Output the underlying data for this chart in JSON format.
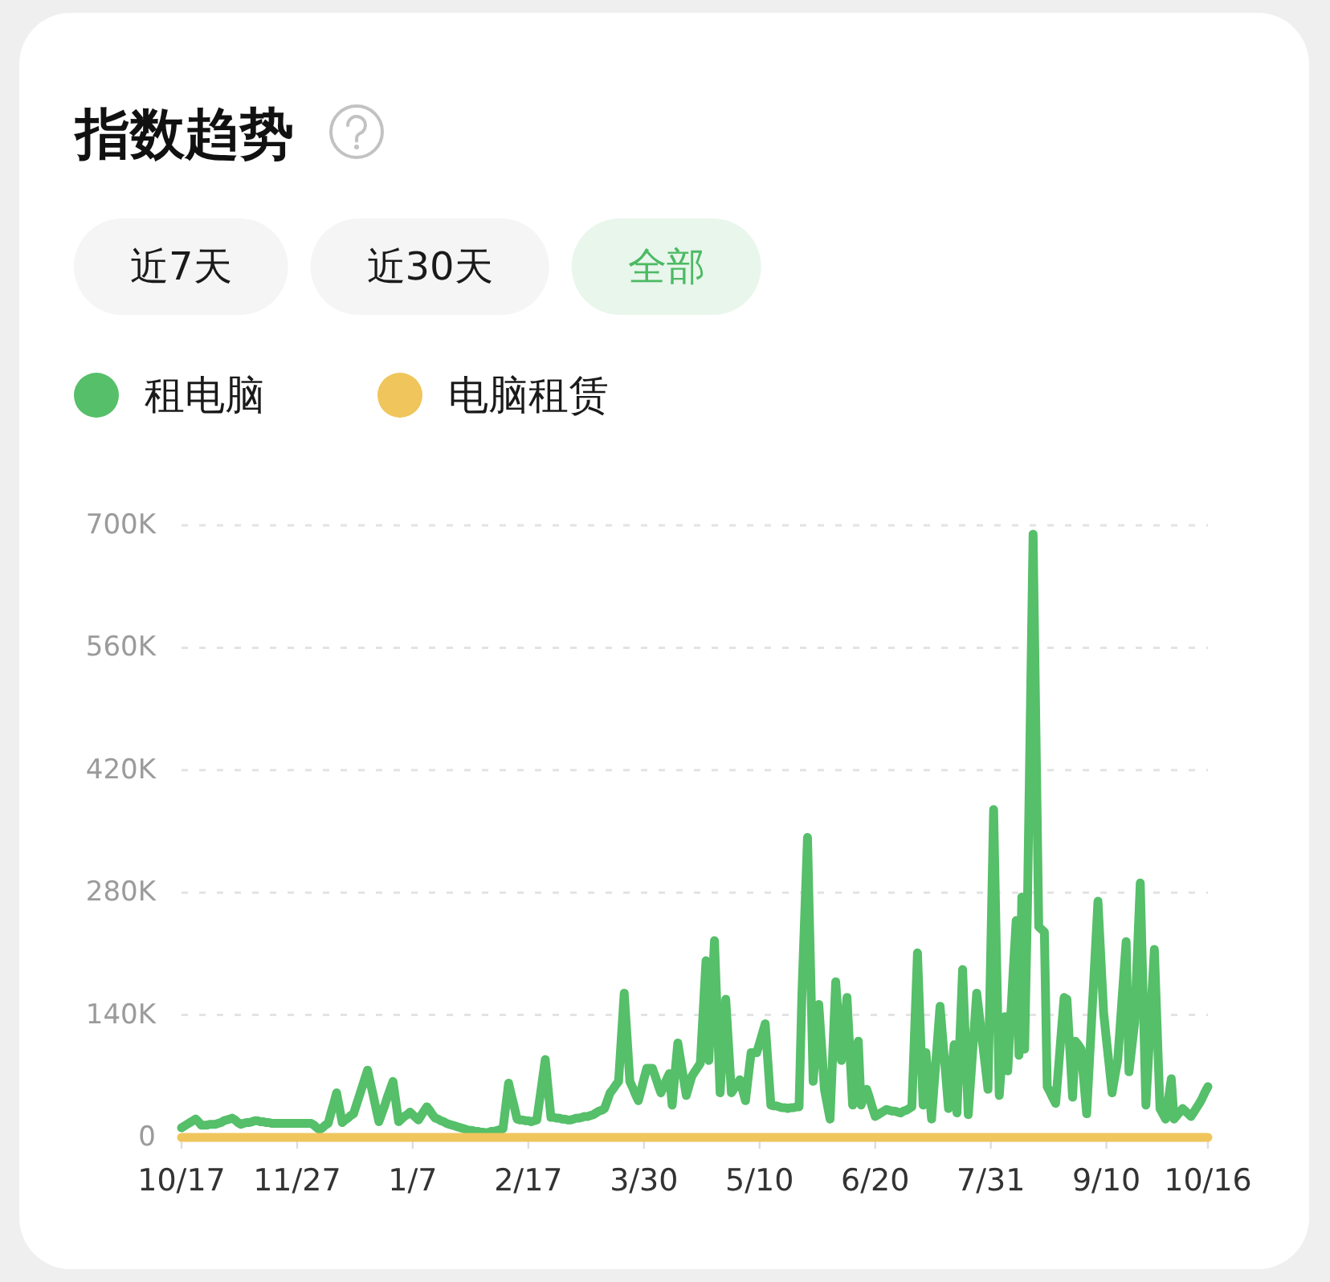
{
  "chart_data": {
    "type": "line",
    "title": "指数趋势",
    "annotations": [
      "近7天",
      "近30天",
      "全部"
    ],
    "legend": "top left",
    "grid": "y",
    "line_style": "solid",
    "categories": [
      "10/17",
      null,
      null,
      null,
      null,
      null,
      null,
      null,
      null,
      null,
      null,
      null,
      null,
      null,
      null,
      null,
      null,
      null,
      null,
      null,
      null,
      null,
      null,
      null,
      null,
      null,
      null,
      null,
      null,
      null,
      null,
      null,
      null,
      null,
      null,
      null,
      null,
      null,
      null,
      null,
      null,
      "11/27",
      null,
      null,
      null,
      null,
      null,
      null,
      null,
      null,
      null,
      null,
      null,
      null,
      null,
      null,
      null,
      null,
      null,
      null,
      null,
      null,
      null,
      null,
      null,
      null,
      null,
      null,
      null,
      null,
      null,
      null,
      null,
      null,
      null,
      null,
      null,
      null,
      null,
      null,
      null,
      null,
      "1/7",
      null,
      null,
      null,
      null,
      null,
      null,
      null,
      null,
      null,
      null,
      null,
      null,
      null,
      null,
      null,
      null,
      null,
      null,
      null,
      null,
      null,
      null,
      null,
      null,
      null,
      null,
      null,
      null,
      null,
      null,
      null,
      null,
      null,
      null,
      null,
      null,
      null,
      null,
      null,
      null,
      "2/17",
      null,
      null,
      null,
      null,
      null,
      null,
      null,
      null,
      null,
      null,
      null,
      null,
      null,
      null,
      null,
      null,
      null,
      null,
      null,
      null,
      null,
      null,
      null,
      null,
      null,
      null,
      null,
      null,
      null,
      null,
      null,
      null,
      null,
      null,
      null,
      null,
      null,
      null,
      null,
      null,
      "3/30",
      null,
      null,
      null,
      null,
      null,
      null,
      null,
      null,
      null,
      null,
      null,
      null,
      null,
      null,
      null,
      null,
      null,
      null,
      null,
      null,
      null,
      null,
      null,
      null,
      null,
      null,
      null,
      null,
      null,
      null,
      null,
      null,
      null,
      null,
      null,
      null,
      null,
      null,
      null,
      null,
      "5/10",
      null,
      null,
      null,
      null,
      null,
      null,
      null,
      null,
      null,
      null,
      null,
      null,
      null,
      null,
      null,
      null,
      null,
      null,
      null,
      null,
      null,
      null,
      null,
      null,
      null,
      null,
      null,
      null,
      null,
      null,
      null,
      null,
      null,
      null,
      null,
      null,
      null,
      null,
      null,
      null,
      "6/20",
      null,
      null,
      null,
      null,
      null,
      null,
      null,
      null,
      null,
      null,
      null,
      null,
      null,
      null,
      null,
      null,
      null,
      null,
      null,
      null,
      null,
      null,
      null,
      null,
      null,
      null,
      null,
      null,
      null,
      null,
      null,
      null,
      null,
      null,
      null,
      null,
      null,
      null,
      null,
      null,
      "7/31",
      null,
      null,
      null,
      null,
      null,
      null,
      null,
      null,
      null,
      null,
      null,
      null,
      null,
      null,
      null,
      null,
      null,
      null,
      null,
      null,
      null,
      null,
      null,
      null,
      null,
      null,
      null,
      null,
      null,
      null,
      null,
      null,
      null,
      null,
      null,
      null,
      null,
      null,
      null,
      null,
      "9/10",
      null,
      null,
      null,
      null,
      null,
      null,
      null,
      null,
      null,
      null,
      null,
      null,
      null,
      null,
      null,
      null,
      null,
      null,
      null,
      null,
      null,
      null,
      null,
      null,
      null,
      null,
      null,
      null,
      null,
      null,
      null,
      null,
      null,
      null,
      null,
      "10/16"
    ],
    "ylim": [
      0,
      700000
    ],
    "yticks": [
      {
        "value": 0,
        "label": "0"
      },
      {
        "value": 140000,
        "label": "140K"
      },
      {
        "value": 280000,
        "label": "280K"
      },
      {
        "value": 420000,
        "label": "420K"
      },
      {
        "value": 560000,
        "label": "560K"
      },
      {
        "value": 700000,
        "label": "700K"
      }
    ],
    "series": [
      {
        "name": "租电脑",
        "color": "#55bf69",
        "values": [
          11000,
          13000,
          15000,
          17000,
          19000,
          21000,
          18000,
          14000,
          14000,
          14000,
          15000,
          15000,
          15000,
          16000,
          17000,
          19000,
          20000,
          21000,
          22000,
          20000,
          17000,
          15000,
          16000,
          17000,
          17000,
          18000,
          19000,
          19000,
          18000,
          18000,
          17000,
          17000,
          16000,
          16000,
          16000,
          16000,
          16000,
          16000,
          16000,
          16000,
          16000,
          16000,
          16000,
          16000,
          16000,
          16000,
          16000,
          14000,
          11000,
          9000,
          11000,
          14000,
          16000,
          28000,
          39000,
          51000,
          34000,
          17000,
          20000,
          22000,
          25000,
          27000,
          37000,
          47000,
          57000,
          67000,
          77000,
          62000,
          48000,
          33000,
          18000,
          27000,
          36000,
          46000,
          55000,
          64000,
          41000,
          18000,
          21000,
          24000,
          26000,
          29000,
          26000,
          23000,
          20000,
          25000,
          30000,
          35000,
          31000,
          26000,
          22000,
          21000,
          19000,
          18000,
          16000,
          15000,
          14000,
          13000,
          12000,
          11000,
          10000,
          9000,
          8000,
          8000,
          7000,
          7000,
          6000,
          6000,
          5000,
          6000,
          7000,
          7000,
          8000,
          9000,
          10000,
          36000,
          62000,
          48000,
          35000,
          21000,
          20000,
          20000,
          19000,
          19000,
          18000,
          19000,
          20000,
          43000,
          66000,
          89000,
          56000,
          23000,
          23000,
          22000,
          22000,
          21000,
          21000,
          20000,
          20000,
          21000,
          22000,
          22000,
          23000,
          24000,
          24000,
          25000,
          26000,
          28000,
          30000,
          31000,
          33000,
          42000,
          51000,
          55000,
          60000,
          64000,
          115000,
          165000,
          115000,
          64000,
          57000,
          49000,
          42000,
          54000,
          67000,
          79000,
          79000,
          79000,
          70000,
          60000,
          51000,
          58000,
          66000,
          73000,
          37000,
          73000,
          108000,
          88000,
          68000,
          48000,
          59000,
          70000,
          75000,
          80000,
          85000,
          144000,
          202000,
          88000,
          157000,
          225000,
          138000,
          51000,
          105000,
          158000,
          105000,
          51000,
          56000,
          61000,
          66000,
          54000,
          42000,
          70000,
          97000,
          97000,
          97000,
          108000,
          119000,
          130000,
          84000,
          37000,
          36000,
          36000,
          35000,
          34000,
          34000,
          33000,
          34000,
          34000,
          35000,
          35000,
          162000,
          253000,
          343000,
          204000,
          64000,
          108000,
          152000,
          104000,
          55000,
          38000,
          21000,
          100000,
          178000,
          133000,
          88000,
          124000,
          160000,
          99000,
          37000,
          74000,
          110000,
          37000,
          46000,
          55000,
          45000,
          34000,
          24000,
          26000,
          28000,
          30000,
          32000,
          31000,
          30000,
          30000,
          29000,
          28000,
          30000,
          31000,
          33000,
          35000,
          123000,
          211000,
          124000,
          37000,
          97000,
          59000,
          21000,
          64000,
          107000,
          150000,
          111000,
          72000,
          33000,
          70000,
          106000,
          28000,
          110000,
          192000,
          109000,
          26000,
          72000,
          119000,
          165000,
          138000,
          110000,
          83000,
          55000,
          215000,
          375000,
          212000,
          48000,
          93000,
          138000,
          76000,
          135000,
          193000,
          248000,
          94000,
          275000,
          101000,
          266000,
          478000,
          690000,
          466000,
          241000,
          238000,
          235000,
          58000,
          52000,
          45000,
          39000,
          79000,
          120000,
          160000,
          158000,
          102000,
          46000,
          110000,
          106000,
          101000,
          64000,
          27000,
          88000,
          149000,
          209000,
          270000,
          207000,
          143000,
          112000,
          82000,
          51000,
          70000,
          88000,
          133000,
          179000,
          224000,
          75000,
          103000,
          131000,
          211000,
          291000,
          164000,
          37000,
          96000,
          156000,
          215000,
          124000,
          33000,
          27000,
          21000,
          44000,
          67000,
          21000,
          25000,
          29000,
          33000,
          30000,
          27000,
          24000,
          29000,
          34000,
          39000,
          45000,
          52000,
          58000
        ]
      },
      {
        "name": "电脑租赁",
        "color": "#efc55c",
        "values": [
          0,
          0,
          0,
          0,
          0,
          0,
          0,
          0,
          0,
          0,
          0,
          0,
          0,
          0,
          0,
          0,
          0,
          0,
          0,
          0,
          0,
          0,
          0,
          0,
          0,
          0,
          0,
          0,
          0,
          0,
          0,
          0,
          0,
          0,
          0,
          0,
          0,
          0,
          0,
          0,
          0,
          0,
          0,
          0,
          0,
          0,
          0,
          0,
          0,
          0,
          0,
          0,
          0,
          0,
          0,
          0,
          0,
          0,
          0,
          0,
          0,
          0,
          0,
          0,
          0,
          0,
          0,
          0,
          0,
          0,
          0,
          0,
          0,
          0,
          0,
          0,
          0,
          0,
          0,
          0,
          0,
          0,
          0,
          0,
          0,
          0,
          0,
          0,
          0,
          0,
          0,
          0,
          0,
          0,
          0,
          0,
          0,
          0,
          0,
          0,
          0,
          0,
          0,
          0,
          0,
          0,
          0,
          0,
          0,
          0,
          0,
          0,
          0,
          0,
          0,
          0,
          0,
          0,
          0,
          0,
          0,
          0,
          0,
          0,
          0,
          0,
          0,
          0,
          0,
          0,
          0,
          0,
          0,
          0,
          0,
          0,
          0,
          0,
          0,
          0,
          0,
          0,
          0,
          0,
          0,
          0,
          0,
          0,
          0,
          0,
          0,
          0,
          0,
          0,
          0,
          0,
          0,
          0,
          0,
          0,
          0,
          0,
          0,
          0,
          0,
          0,
          0,
          0,
          0,
          0,
          0,
          0,
          0,
          0,
          0,
          0,
          0,
          0,
          0,
          0,
          0,
          0,
          0,
          0,
          0,
          0,
          0,
          0,
          0,
          0,
          0,
          0,
          0,
          0,
          0,
          0,
          0,
          0,
          0,
          0,
          0,
          0,
          0,
          0,
          0,
          0,
          0,
          0,
          0,
          0,
          0,
          0,
          0,
          0,
          0,
          0,
          0,
          0,
          0,
          0,
          0,
          0,
          0,
          0,
          0,
          0,
          0,
          0,
          0,
          0,
          0,
          0,
          0,
          0,
          0,
          0,
          0,
          0,
          0,
          0,
          0,
          0,
          0,
          0,
          0,
          0,
          0,
          0,
          0,
          0,
          0,
          0,
          0,
          0,
          0,
          0,
          0,
          0,
          0,
          0,
          0,
          0,
          0,
          0,
          0,
          0,
          0,
          0,
          0,
          0,
          0,
          0,
          0,
          0,
          0,
          0,
          0,
          0,
          0,
          0,
          0,
          0,
          0,
          0,
          0,
          0,
          0,
          0,
          0,
          0,
          0,
          0,
          0,
          0,
          0,
          0,
          0,
          0,
          0,
          0,
          0,
          0,
          0,
          0,
          0,
          0,
          0,
          0,
          0,
          0,
          0,
          0,
          0,
          0,
          0,
          0,
          0,
          0,
          0,
          0,
          0,
          0,
          0,
          0,
          0,
          0,
          0,
          0,
          0,
          0,
          0,
          0,
          0,
          0,
          0,
          0,
          0,
          0,
          0,
          0,
          0,
          0,
          0,
          0,
          0,
          0,
          0,
          0,
          0,
          0,
          0,
          0,
          0,
          0,
          0,
          0,
          0,
          0,
          0,
          0,
          0,
          0,
          0,
          0,
          0
        ]
      }
    ]
  }
}
